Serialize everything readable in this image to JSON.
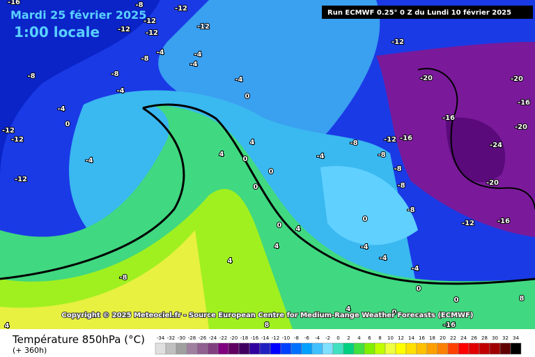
{
  "header": {
    "date": "Mardi 25 février 2025",
    "time": "1:00 locale",
    "run": "Run ECMWF 0.25° 0 Z du Lundi 10 février 2025"
  },
  "copyright": "Copyright © 2025 Meteociel.fr - Source European Centre for Medium-Range Weather Forecasts (ECMWF)",
  "footer": {
    "title": "Température 850hPa (°C)",
    "lead": "(+ 360h)"
  },
  "legend": {
    "ticks": [
      -34,
      -32,
      -30,
      -28,
      -26,
      -24,
      -22,
      -20,
      -18,
      -16,
      -14,
      -12,
      -10,
      -8,
      -6,
      -4,
      -2,
      0,
      2,
      4,
      6,
      8,
      10,
      12,
      14,
      16,
      18,
      20,
      22,
      24,
      26,
      28,
      30,
      32,
      34
    ],
    "colors": [
      "#e0e0e0",
      "#c0c0c0",
      "#a0a0a0",
      "#a080a0",
      "#906090",
      "#804080",
      "#800080",
      "#600060",
      "#400060",
      "#3000a0",
      "#2020c0",
      "#0000ff",
      "#0040ff",
      "#0070ff",
      "#00a0ff",
      "#40c0ff",
      "#80e0ff",
      "#40e0c0",
      "#00d080",
      "#40e040",
      "#80f000",
      "#c0ff00",
      "#f0ff40",
      "#ffff00",
      "#ffe000",
      "#ffc000",
      "#ffa000",
      "#ff8000",
      "#ff4000",
      "#ff0000",
      "#e00000",
      "#c00000",
      "#a00000",
      "#600000",
      "#000000"
    ]
  },
  "map_labels": [
    -16,
    -8,
    -12,
    -12,
    -12,
    -12,
    -12,
    -12,
    -4,
    -8,
    -4,
    -4,
    -8,
    -8,
    -4,
    -4,
    0,
    -4,
    0,
    -12,
    -12,
    -4,
    4,
    4,
    0,
    0,
    0,
    -12,
    -20,
    -20,
    -16,
    -16,
    -16,
    -12,
    -20,
    -24,
    -20,
    -4,
    -8,
    -8,
    -8,
    -8,
    -8,
    0,
    -12,
    -16,
    0,
    4,
    4,
    -4,
    -4,
    -4,
    4,
    -8,
    0,
    0,
    8,
    -16,
    8,
    4,
    4,
    0
  ]
}
